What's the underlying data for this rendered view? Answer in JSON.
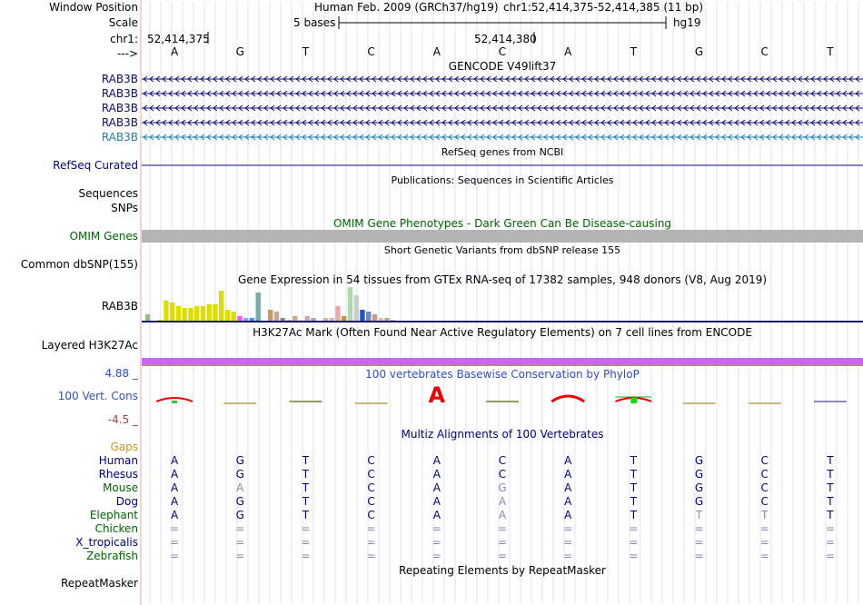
{
  "header": {
    "window_position_label": "Window Position",
    "assembly_text": "Human Feb. 2009 (GRCh37/hg19)",
    "position_text": "chr1:52,414,375-52,414,385 (11 bp)",
    "scale_label": "Scale",
    "scale_text": "5 bases",
    "scale_db": "hg19",
    "chrom_label": "chr1:",
    "coord_left": "52,414,375",
    "coord_mid": "52,414,380",
    "strand_label": "--->",
    "bases": [
      "A",
      "G",
      "T",
      "C",
      "A",
      "C",
      "A",
      "T",
      "G",
      "C",
      "T"
    ]
  },
  "tracks": {
    "gencode": {
      "title": "GENCODE V49lift37",
      "genes": [
        {
          "label": "RAB3B",
          "color": "#0c0c78"
        },
        {
          "label": "RAB3B",
          "color": "#0c0c78"
        },
        {
          "label": "RAB3B",
          "color": "#0c0c78"
        },
        {
          "label": "RAB3B",
          "color": "#0c0c78"
        },
        {
          "label": "RAB3B",
          "color": "#1a80b0"
        }
      ]
    },
    "refseq": {
      "title": "RefSeq genes from NCBI",
      "label": "RefSeq Curated",
      "color": "#0c0c78"
    },
    "publications": {
      "title": "Publications: Sequences in Scientific Articles",
      "label_sequences": "Sequences",
      "label_snps": "SNPs"
    },
    "omim": {
      "title": "OMIM Gene Phenotypes - Dark Green Can Be Disease-causing",
      "label": "OMIM Genes",
      "color": "#006400"
    },
    "dbsnp": {
      "title": "Short Genetic Variants from dbSNP release 155",
      "label": "Common dbSNP(155)"
    },
    "gtex": {
      "title": "Gene Expression in 54 tissues from GTEx RNA-seq of 17382 samples, 948 donors (V8, Aug 2019)",
      "label": "RAB3B",
      "bars": [
        {
          "c": "#99bb88",
          "v": 0.2
        },
        {
          "c": "#ffffff",
          "v": 0
        },
        {
          "c": "#dddd00",
          "v": 0.05
        },
        {
          "c": "#dddd00",
          "v": 0.6
        },
        {
          "c": "#dddd00",
          "v": 0.55
        },
        {
          "c": "#dddd00",
          "v": 0.45
        },
        {
          "c": "#dddd00",
          "v": 0.4
        },
        {
          "c": "#dddd00",
          "v": 0.4
        },
        {
          "c": "#dddd00",
          "v": 0.45
        },
        {
          "c": "#dddd00",
          "v": 0.45
        },
        {
          "c": "#dddd00",
          "v": 0.5
        },
        {
          "c": "#dddd00",
          "v": 0.5
        },
        {
          "c": "#dddd00",
          "v": 0.9
        },
        {
          "c": "#dddd00",
          "v": 0.35
        },
        {
          "c": "#dddd00",
          "v": 0.3
        },
        {
          "c": "#ff55ff",
          "v": 0.15
        },
        {
          "c": "#88aadd",
          "v": 0.1
        },
        {
          "c": "#3399ff",
          "v": 0.1
        },
        {
          "c": "#77aaaa",
          "v": 0.85
        },
        {
          "c": "#ffffff",
          "v": 0
        },
        {
          "c": "#cc9966",
          "v": 0.35
        },
        {
          "c": "#bbaa99",
          "v": 0.3
        },
        {
          "c": "#888888",
          "v": 0.1
        },
        {
          "c": "#bbbbbb",
          "v": 0.05
        },
        {
          "c": "#ccaa88",
          "v": 0.15
        },
        {
          "c": "#dddddd",
          "v": 0.05
        },
        {
          "c": "#ccaaaa",
          "v": 0.15
        },
        {
          "c": "#aaaaaa",
          "v": 0.1
        },
        {
          "c": "#ffffff",
          "v": 0
        },
        {
          "c": "#ccbb99",
          "v": 0.1
        },
        {
          "c": "#ccbbbb",
          "v": 0.1
        },
        {
          "c": "#eeaaaa",
          "v": 0.45
        },
        {
          "c": "#bb9944",
          "v": 0.15
        },
        {
          "c": "#aaddaa",
          "v": 1.0
        },
        {
          "c": "#cccccc",
          "v": 0.75
        },
        {
          "c": "#2255cc",
          "v": 0.35
        },
        {
          "c": "#6688cc",
          "v": 0.3
        },
        {
          "c": "#cc9988",
          "v": 0.2
        },
        {
          "c": "#ddbbaa",
          "v": 0.1
        },
        {
          "c": "#bbaa88",
          "v": 0.1
        },
        {
          "c": "#bbbbbb",
          "v": 0.05
        }
      ]
    },
    "h3k27ac": {
      "title": "H3K27Ac Mark (Often Found Near Active Regulatory Elements) on 7 cell lines from ENCODE",
      "label": "Layered H3K27Ac",
      "color": "#cc66ff"
    },
    "phylop": {
      "title": "100 vertebrates Basewise Conservation by PhyloP",
      "label": "100 Vert. Cons",
      "max": "4.88 _",
      "min": "-4.5 _",
      "scores": [
        1.2,
        -0.5,
        0.1,
        -0.3,
        4.7,
        0.3,
        2.6,
        1.4,
        -0.3,
        -0.5,
        0.0
      ]
    },
    "multiz": {
      "title": "Multiz Alignments of 100 Vertebrates",
      "gaps_label": "Gaps",
      "species": [
        {
          "name": "Human",
          "color": "#000080",
          "seq": [
            "A",
            "G",
            "T",
            "C",
            "A",
            "C",
            "A",
            "T",
            "G",
            "C",
            "T"
          ],
          "dim": [
            0,
            0,
            0,
            0,
            0,
            0,
            0,
            0,
            0,
            0,
            0
          ]
        },
        {
          "name": "Rhesus",
          "color": "#000080",
          "seq": [
            "A",
            "G",
            "T",
            "C",
            "A",
            "C",
            "A",
            "T",
            "G",
            "C",
            "T"
          ],
          "dim": [
            0,
            0,
            0,
            0,
            0,
            0,
            0,
            0,
            0,
            0,
            0
          ]
        },
        {
          "name": "Mouse",
          "color": "#006400",
          "seq": [
            "A",
            "A",
            "T",
            "C",
            "A",
            "G",
            "A",
            "T",
            "G",
            "C",
            "T"
          ],
          "dim": [
            0,
            1,
            0,
            0,
            0,
            1,
            0,
            0,
            0,
            0,
            0
          ]
        },
        {
          "name": "Dog",
          "color": "#000080",
          "seq": [
            "A",
            "G",
            "T",
            "C",
            "A",
            "A",
            "A",
            "T",
            "G",
            "C",
            "T"
          ],
          "dim": [
            0,
            0,
            0,
            0,
            0,
            1,
            0,
            0,
            0,
            0,
            0
          ]
        },
        {
          "name": "Elephant",
          "color": "#006400",
          "seq": [
            "A",
            "G",
            "T",
            "C",
            "A",
            "A",
            "A",
            "T",
            "T",
            "T",
            "T"
          ],
          "dim": [
            0,
            0,
            0,
            0,
            0,
            1,
            0,
            0,
            1,
            1,
            0
          ]
        },
        {
          "name": "Chicken",
          "color": "#006400",
          "seq": [
            "=",
            "=",
            "=",
            "=",
            "=",
            "=",
            "=",
            "=",
            "=",
            "=",
            "="
          ],
          "dim": [
            1,
            1,
            1,
            1,
            1,
            1,
            1,
            1,
            1,
            1,
            1
          ]
        },
        {
          "name": "X_tropicalis",
          "color": "#000080",
          "seq": [
            "=",
            "=",
            "=",
            "=",
            "=",
            "=",
            "=",
            "=",
            "=",
            "=",
            "="
          ],
          "dim": [
            1,
            1,
            1,
            1,
            1,
            1,
            1,
            1,
            1,
            1,
            1
          ]
        },
        {
          "name": "Zebrafish",
          "color": "#006400",
          "seq": [
            "=",
            "=",
            "=",
            "=",
            "=",
            "=",
            "=",
            "=",
            "=",
            "=",
            "="
          ],
          "dim": [
            1,
            1,
            1,
            1,
            1,
            1,
            1,
            1,
            1,
            1,
            1
          ]
        }
      ]
    },
    "repeatmasker": {
      "title": "Repeating Elements by RepeatMasker",
      "label": "RepeatMasker"
    }
  },
  "colors": {
    "navy": "#000080",
    "gaps": "#c8961e",
    "dim": "#8888bb",
    "phylop_pos": "#3050c0",
    "phylop_neg": "#a04040",
    "red_letter": "#ee0000"
  }
}
